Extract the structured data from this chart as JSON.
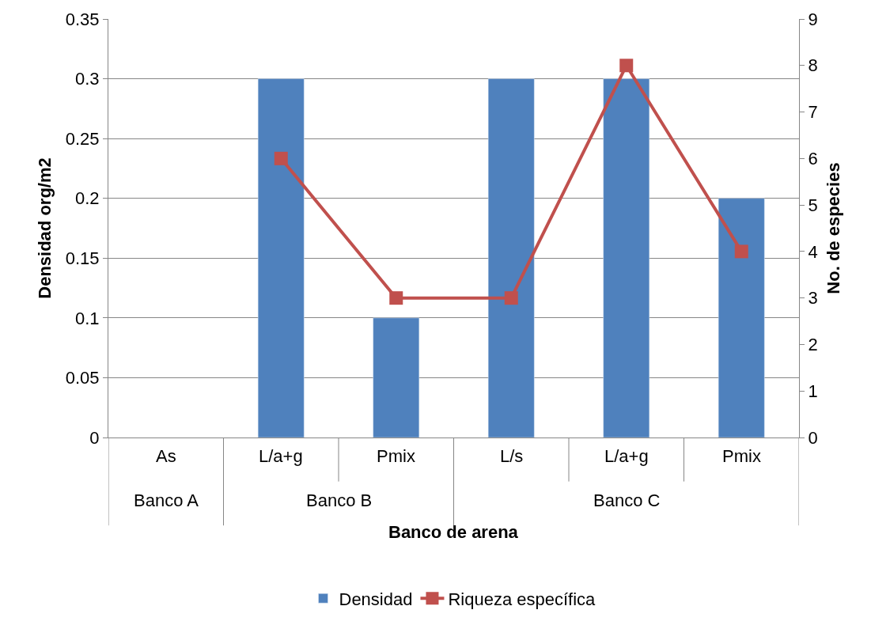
{
  "chart_data": {
    "type": "bar",
    "categories": [
      "As",
      "L/a+g",
      "Pmix",
      "L/s",
      "L/a+g",
      "Pmix"
    ],
    "xlabel": "Banco de arena",
    "ylabel": "Densidad org/m2",
    "y2label": "No. de especies",
    "series": [
      {
        "name": "Densidad",
        "color": "#4f81bd",
        "values": [
          null,
          0.3,
          0.1,
          0.3,
          0.3,
          0.2
        ]
      },
      {
        "name": "Riqueza específica",
        "type": "line",
        "axis": "y2",
        "color": "#c0504d",
        "marker": "square",
        "values": [
          null,
          6,
          3,
          3,
          8,
          4
        ]
      }
    ],
    "annotations": [
      "Banco A",
      "Banco B",
      "Banco C"
    ],
    "ylim": [
      0,
      0.35
    ],
    "yticks": [
      0,
      0.05,
      0.1,
      0.15,
      0.2,
      0.25,
      0.3,
      0.35
    ],
    "y2lim": [
      0,
      9
    ],
    "y2ticks": [
      0,
      1,
      2,
      3,
      4,
      5,
      6,
      7,
      8,
      9
    ],
    "grid": "y",
    "legend": "bottom"
  }
}
